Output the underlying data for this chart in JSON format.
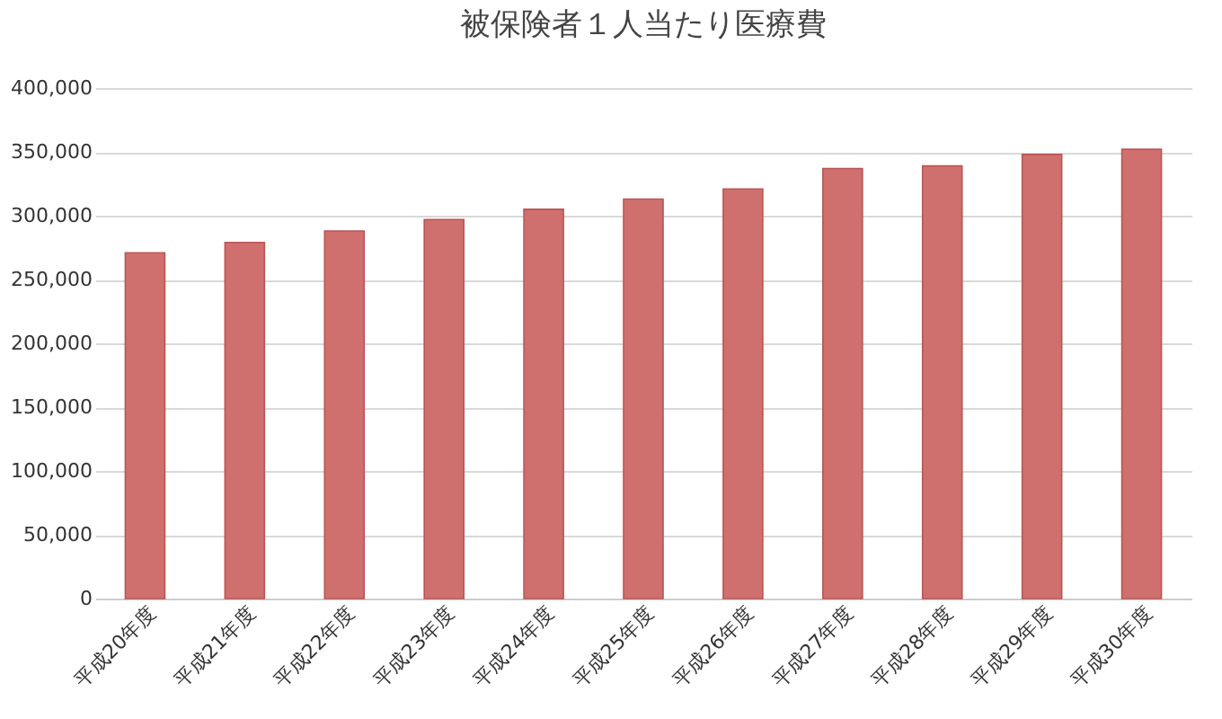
{
  "chart_data": {
    "type": "bar",
    "title": "被保険者１人当たり医療費",
    "categories": [
      "平成20年度",
      "平成21年度",
      "平成22年度",
      "平成23年度",
      "平成24年度",
      "平成25年度",
      "平成26年度",
      "平成27年度",
      "平成28年度",
      "平成29年度",
      "平成30年度"
    ],
    "values": [
      271000,
      279000,
      288000,
      297000,
      305000,
      313000,
      321000,
      337000,
      339000,
      348000,
      352000
    ],
    "color": "#d0706e",
    "ylim": [
      0,
      400000
    ],
    "yticks": [
      {
        "value": 0,
        "label": "0"
      },
      {
        "value": 50000,
        "label": "50,000"
      },
      {
        "value": 100000,
        "label": "100,000"
      },
      {
        "value": 150000,
        "label": "150,000"
      },
      {
        "value": 200000,
        "label": "200,000"
      },
      {
        "value": 250000,
        "label": "250,000"
      },
      {
        "value": 300000,
        "label": "300,000"
      },
      {
        "value": 350000,
        "label": "350,000"
      },
      {
        "value": 400000,
        "label": "400,000"
      }
    ],
    "grid": "y"
  }
}
